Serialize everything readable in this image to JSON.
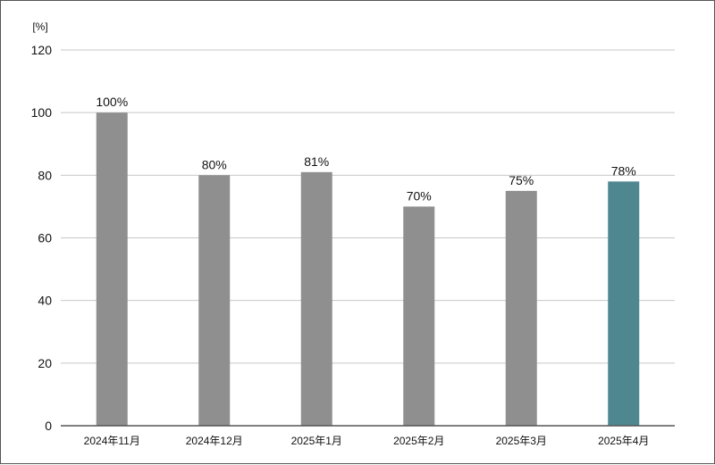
{
  "chart_data": {
    "type": "bar",
    "unit_label": "[%]",
    "categories": [
      "2024年11月",
      "2024年12月",
      "2025年1月",
      "2025年2月",
      "2025年3月",
      "2025年4月"
    ],
    "values": [
      100,
      80,
      81,
      70,
      75,
      78
    ],
    "data_labels": [
      "100%",
      "80%",
      "81%",
      "70%",
      "75%",
      "78%"
    ],
    "yticks": [
      0,
      20,
      40,
      60,
      80,
      100,
      120
    ],
    "ylim": [
      0,
      120
    ],
    "grid": true,
    "colors": {
      "default_bar": "#8f8f8f",
      "highlight_bar": "#4f8790",
      "grid": "#c8c8c8",
      "axis": "#555555"
    },
    "highlight_index": 5
  }
}
